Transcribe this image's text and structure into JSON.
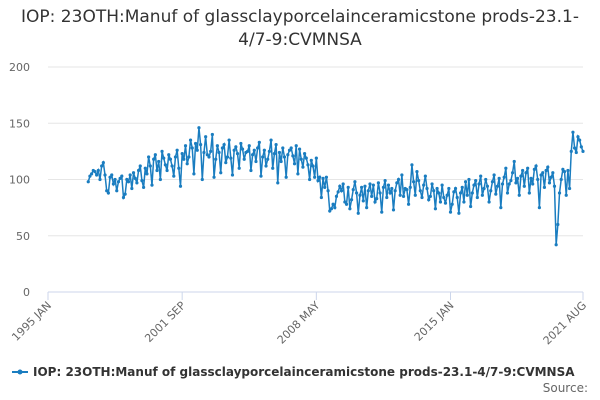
{
  "chart_data": {
    "type": "line",
    "title": "IOP: 23OTH:Manuf of glassclayporcelainceramicstone prods-23.1-4/7-9:CVMNSA",
    "source": "Source:",
    "xlim": [
      "1995-01",
      "2021-08"
    ],
    "xticks": [
      {
        "value": "1995-01",
        "label": "1995 JAN"
      },
      {
        "value": "2001-09",
        "label": "2001 SEP"
      },
      {
        "value": "2008-05",
        "label": "2008 MAY"
      },
      {
        "value": "2015-01",
        "label": "2015 JAN"
      },
      {
        "value": "2021-08",
        "label": "2021 AUG"
      }
    ],
    "ylim": [
      0,
      200
    ],
    "yticks": [
      0,
      50,
      100,
      150,
      200
    ],
    "grid": true,
    "x": [
      "1997-01",
      "1997-02",
      "1997-03",
      "1997-04",
      "1997-05",
      "1997-06",
      "1997-07",
      "1997-08",
      "1997-09",
      "1997-10",
      "1997-11",
      "1997-12",
      "1998-01",
      "1998-02",
      "1998-03",
      "1998-04",
      "1998-05",
      "1998-06",
      "1998-07",
      "1998-08",
      "1998-09",
      "1998-10",
      "1998-11",
      "1998-12",
      "1999-01",
      "1999-02",
      "1999-03",
      "1999-04",
      "1999-05",
      "1999-06",
      "1999-07",
      "1999-08",
      "1999-09",
      "1999-10",
      "1999-11",
      "1999-12",
      "2000-01",
      "2000-02",
      "2000-03",
      "2000-04",
      "2000-05",
      "2000-06",
      "2000-07",
      "2000-08",
      "2000-09",
      "2000-10",
      "2000-11",
      "2000-12",
      "2001-01",
      "2001-02",
      "2001-03",
      "2001-04",
      "2001-05",
      "2001-06",
      "2001-07",
      "2001-08",
      "2001-09",
      "2001-10",
      "2001-11",
      "2001-12",
      "2002-01",
      "2002-02",
      "2002-03",
      "2002-04",
      "2002-05",
      "2002-06",
      "2002-07",
      "2002-08",
      "2002-09",
      "2002-10",
      "2002-11",
      "2002-12",
      "2003-01",
      "2003-02",
      "2003-03",
      "2003-04",
      "2003-05",
      "2003-06",
      "2003-07",
      "2003-08",
      "2003-09",
      "2003-10",
      "2003-11",
      "2003-12",
      "2004-01",
      "2004-02",
      "2004-03",
      "2004-04",
      "2004-05",
      "2004-06",
      "2004-07",
      "2004-08",
      "2004-09",
      "2004-10",
      "2004-11",
      "2004-12",
      "2005-01",
      "2005-02",
      "2005-03",
      "2005-04",
      "2005-05",
      "2005-06",
      "2005-07",
      "2005-08",
      "2005-09",
      "2005-10",
      "2005-11",
      "2005-12",
      "2006-01",
      "2006-02",
      "2006-03",
      "2006-04",
      "2006-05",
      "2006-06",
      "2006-07",
      "2006-08",
      "2006-09",
      "2006-10",
      "2006-11",
      "2006-12",
      "2007-01",
      "2007-02",
      "2007-03",
      "2007-04",
      "2007-05",
      "2007-06",
      "2007-07",
      "2007-08",
      "2007-09",
      "2007-10",
      "2007-11",
      "2007-12",
      "2008-01",
      "2008-02",
      "2008-03",
      "2008-04",
      "2008-05",
      "2008-06",
      "2008-07",
      "2008-08",
      "2008-09",
      "2008-10",
      "2008-11",
      "2008-12",
      "2009-01",
      "2009-02",
      "2009-03",
      "2009-04",
      "2009-05",
      "2009-06",
      "2009-07",
      "2009-08",
      "2009-09",
      "2009-10",
      "2009-11",
      "2009-12",
      "2010-01",
      "2010-02",
      "2010-03",
      "2010-04",
      "2010-05",
      "2010-06",
      "2010-07",
      "2010-08",
      "2010-09",
      "2010-10",
      "2010-11",
      "2010-12",
      "2011-01",
      "2011-02",
      "2011-03",
      "2011-04",
      "2011-05",
      "2011-06",
      "2011-07",
      "2011-08",
      "2011-09",
      "2011-10",
      "2011-11",
      "2011-12",
      "2012-01",
      "2012-02",
      "2012-03",
      "2012-04",
      "2012-05",
      "2012-06",
      "2012-07",
      "2012-08",
      "2012-09",
      "2012-10",
      "2012-11",
      "2012-12",
      "2013-01",
      "2013-02",
      "2013-03",
      "2013-04",
      "2013-05",
      "2013-06",
      "2013-07",
      "2013-08",
      "2013-09",
      "2013-10",
      "2013-11",
      "2013-12",
      "2014-01",
      "2014-02",
      "2014-03",
      "2014-04",
      "2014-05",
      "2014-06",
      "2014-07",
      "2014-08",
      "2014-09",
      "2014-10",
      "2014-11",
      "2014-12",
      "2015-01",
      "2015-02",
      "2015-03",
      "2015-04",
      "2015-05",
      "2015-06",
      "2015-07",
      "2015-08",
      "2015-09",
      "2015-10",
      "2015-11",
      "2015-12",
      "2016-01",
      "2016-02",
      "2016-03",
      "2016-04",
      "2016-05",
      "2016-06",
      "2016-07",
      "2016-08",
      "2016-09",
      "2016-10",
      "2016-11",
      "2016-12",
      "2017-01",
      "2017-02",
      "2017-03",
      "2017-04",
      "2017-05",
      "2017-06",
      "2017-07",
      "2017-08",
      "2017-09",
      "2017-10",
      "2017-11",
      "2017-12",
      "2018-01",
      "2018-02",
      "2018-03",
      "2018-04",
      "2018-05",
      "2018-06",
      "2018-07",
      "2018-08",
      "2018-09",
      "2018-10",
      "2018-11",
      "2018-12",
      "2019-01",
      "2019-02",
      "2019-03",
      "2019-04",
      "2019-05",
      "2019-06",
      "2019-07",
      "2019-08",
      "2019-09",
      "2019-10",
      "2019-11",
      "2019-12",
      "2020-01",
      "2020-02",
      "2020-03",
      "2020-04",
      "2020-05",
      "2020-06",
      "2020-07",
      "2020-08",
      "2020-09",
      "2020-10",
      "2020-11",
      "2020-12",
      "2021-01",
      "2021-02",
      "2021-03",
      "2021-04",
      "2021-05",
      "2021-06",
      "2021-07",
      "2021-08"
    ],
    "series": [
      {
        "name": "IOP: 23OTH:Manuf of glassclayporcelainceramicstone prods-23.1-4/7-9:CVMNSA",
        "color": "#1a7dc0",
        "values": [
          98,
          103,
          105,
          108,
          107,
          104,
          108,
          100,
          112,
          115,
          104,
          90,
          88,
          102,
          104,
          96,
          100,
          90,
          98,
          101,
          103,
          84,
          87,
          100,
          98,
          104,
          92,
          106,
          101,
          97,
          108,
          112,
          99,
          93,
          110,
          105,
          120,
          112,
          95,
          118,
          122,
          108,
          116,
          100,
          125,
          119,
          113,
          108,
          122,
          118,
          112,
          103,
          120,
          126,
          110,
          94,
          123,
          118,
          130,
          114,
          120,
          135,
          128,
          105,
          132,
          126,
          146,
          131,
          100,
          124,
          138,
          122,
          120,
          125,
          140,
          102,
          118,
          130,
          124,
          106,
          128,
          131,
          115,
          120,
          135,
          119,
          104,
          126,
          129,
          123,
          110,
          132,
          127,
          118,
          124,
          125,
          130,
          108,
          122,
          126,
          116,
          128,
          133,
          103,
          120,
          126,
          112,
          118,
          125,
          135,
          110,
          123,
          131,
          97,
          124,
          116,
          128,
          120,
          102,
          122,
          126,
          128,
          121,
          114,
          130,
          105,
          127,
          118,
          111,
          123,
          119,
          113,
          100,
          117,
          112,
          102,
          119,
          99,
          102,
          84,
          101,
          93,
          102,
          90,
          72,
          74,
          78,
          75,
          85,
          89,
          94,
          90,
          96,
          80,
          78,
          93,
          74,
          82,
          91,
          98,
          88,
          70,
          86,
          93,
          81,
          94,
          75,
          90,
          96,
          85,
          95,
          80,
          83,
          97,
          88,
          71,
          93,
          99,
          84,
          95,
          88,
          92,
          73,
          90,
          97,
          100,
          86,
          104,
          85,
          92,
          91,
          78,
          93,
          113,
          98,
          86,
          107,
          99,
          90,
          84,
          95,
          103,
          92,
          82,
          85,
          96,
          90,
          74,
          92,
          88,
          80,
          95,
          84,
          79,
          86,
          92,
          71,
          78,
          89,
          92,
          84,
          70,
          88,
          93,
          80,
          98,
          86,
          100,
          76,
          88,
          95,
          99,
          84,
          96,
          103,
          86,
          92,
          100,
          94,
          80,
          90,
          98,
          104,
          87,
          94,
          101,
          75,
          96,
          102,
          110,
          88,
          96,
          99,
          106,
          116,
          97,
          101,
          86,
          103,
          108,
          94,
          106,
          110,
          88,
          101,
          96,
          109,
          112,
          100,
          75,
          104,
          106,
          93,
          108,
          111,
          97,
          102,
          106,
          94,
          42,
          60,
          88,
          100,
          109,
          107,
          86,
          108,
          92,
          125,
          142,
          128,
          124,
          138,
          135,
          129,
          125
        ]
      }
    ]
  }
}
